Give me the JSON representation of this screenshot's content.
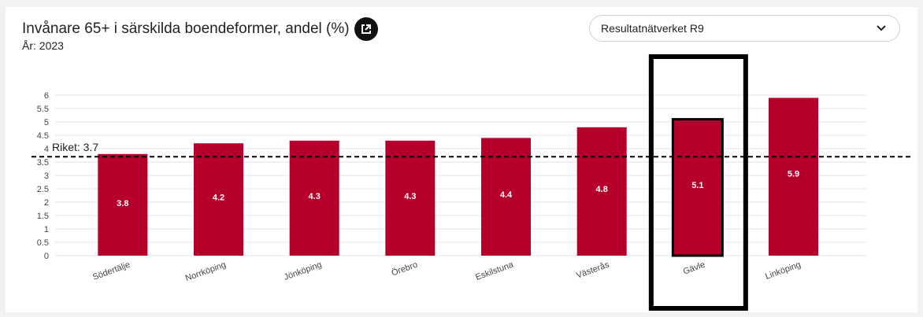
{
  "header": {
    "title": "Invånare 65+ i särskilda boendeformer, andel (%)",
    "year": "År: 2023"
  },
  "dropdown": {
    "selected": "Resultatnätverket R9"
  },
  "colors": {
    "bar": "#b5002b",
    "grid": "#e6e6e6",
    "reference": "#000000"
  },
  "chart_data": {
    "type": "bar",
    "categories": [
      "Södertälje",
      "Norrköping",
      "Jönköping",
      "Örebro",
      "Eskilstuna",
      "Västerås",
      "Gävle",
      "Linköping"
    ],
    "values": [
      3.8,
      4.2,
      4.3,
      4.3,
      4.4,
      4.8,
      5.1,
      5.9
    ],
    "value_labels": [
      "3.8",
      "4.2",
      "4.3",
      "4.3",
      "4.4",
      "4.8",
      "5.1",
      "5.9"
    ],
    "ylim": [
      0,
      6
    ],
    "yticks": [
      "0",
      "0.5",
      "1",
      "1.5",
      "2",
      "2.5",
      "3",
      "3.5",
      "4",
      "4.5",
      "5",
      "5.5",
      "6"
    ],
    "ytick_values": [
      0,
      0.5,
      1,
      1.5,
      2,
      2.5,
      3,
      3.5,
      4,
      4.5,
      5,
      5.5,
      6
    ],
    "reference_line": {
      "label": "Riket: 3.7",
      "value": 3.7
    },
    "highlighted_category": "Gävle",
    "grid": true
  }
}
